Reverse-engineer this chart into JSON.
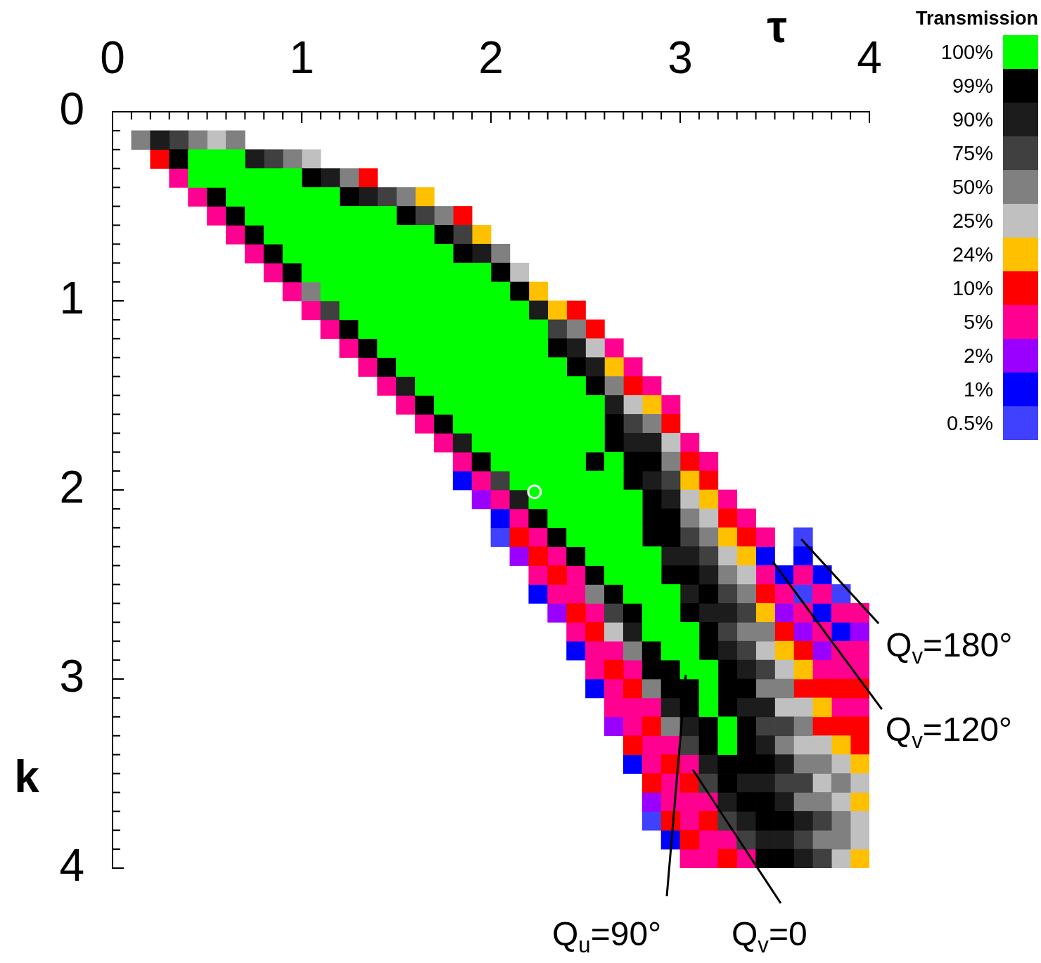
{
  "chart_data": {
    "type": "scatter",
    "xlabel": "τ",
    "ylabel": "k",
    "legend_title": "Transmission",
    "legend": "right",
    "marker": "square",
    "xlim": [
      0,
      4
    ],
    "ylim": [
      4,
      0
    ],
    "xticks": [
      0,
      {
        "value": 0.1,
        "label": null
      },
      {
        "value": 0.2,
        "label": null
      },
      {
        "value": 0.3,
        "label": null
      },
      {
        "value": 0.4,
        "label": null
      },
      {
        "value": 0.5,
        "label": null
      },
      {
        "value": 0.6,
        "label": null
      },
      {
        "value": 0.7,
        "label": null
      },
      {
        "value": 0.8,
        "label": null
      },
      {
        "value": 0.9,
        "label": null
      },
      1,
      {
        "value": 1.1,
        "label": null
      },
      {
        "value": 1.2,
        "label": null
      },
      {
        "value": 1.3,
        "label": null
      },
      {
        "value": 1.4,
        "label": null
      },
      {
        "value": 1.5,
        "label": null
      },
      {
        "value": 1.6,
        "label": null
      },
      {
        "value": 1.7,
        "label": null
      },
      {
        "value": 1.8,
        "label": null
      },
      {
        "value": 1.9,
        "label": null
      },
      2,
      {
        "value": 2.1,
        "label": null
      },
      {
        "value": 2.2,
        "label": null
      },
      {
        "value": 2.3,
        "label": null
      },
      {
        "value": 2.4,
        "label": null
      },
      {
        "value": 2.5,
        "label": null
      },
      {
        "value": 2.6,
        "label": null
      },
      {
        "value": 2.7,
        "label": null
      },
      {
        "value": 2.8,
        "label": null
      },
      {
        "value": 2.9,
        "label": null
      },
      3,
      {
        "value": 3.1,
        "label": null
      },
      {
        "value": 3.2,
        "label": null
      },
      {
        "value": 3.3,
        "label": null
      },
      {
        "value": 3.4,
        "label": null
      },
      {
        "value": 3.5,
        "label": null
      },
      {
        "value": 3.6,
        "label": null
      },
      {
        "value": 3.7,
        "label": null
      },
      {
        "value": 3.8,
        "label": null
      },
      {
        "value": 3.9,
        "label": null
      },
      4
    ],
    "yticks": [
      0,
      {
        "value": 0.1,
        "label": null
      },
      {
        "value": 0.2,
        "label": null
      },
      {
        "value": 0.3,
        "label": null
      },
      {
        "value": 0.4,
        "label": null
      },
      {
        "value": 0.5,
        "label": null
      },
      {
        "value": 0.6,
        "label": null
      },
      {
        "value": 0.7,
        "label": null
      },
      {
        "value": 0.8,
        "label": null
      },
      {
        "value": 0.9,
        "label": null
      },
      1,
      {
        "value": 1.1,
        "label": null
      },
      {
        "value": 1.2,
        "label": null
      },
      {
        "value": 1.3,
        "label": null
      },
      {
        "value": 1.4,
        "label": null
      },
      {
        "value": 1.5,
        "label": null
      },
      {
        "value": 1.6,
        "label": null
      },
      {
        "value": 1.7,
        "label": null
      },
      {
        "value": 1.8,
        "label": null
      },
      {
        "value": 1.9,
        "label": null
      },
      2,
      {
        "value": 2.1,
        "label": null
      },
      {
        "value": 2.2,
        "label": null
      },
      {
        "value": 2.3,
        "label": null
      },
      {
        "value": 2.4,
        "label": null
      },
      {
        "value": 2.5,
        "label": null
      },
      {
        "value": 2.6,
        "label": null
      },
      {
        "value": 2.7,
        "label": null
      },
      {
        "value": 2.8,
        "label": null
      },
      {
        "value": 2.9,
        "label": null
      },
      3,
      {
        "value": 3.1,
        "label": null
      },
      {
        "value": 3.2,
        "label": null
      },
      {
        "value": 3.3,
        "label": null
      },
      {
        "value": 3.4,
        "label": null
      },
      {
        "value": 3.5,
        "label": null
      },
      {
        "value": 3.6,
        "label": null
      },
      {
        "value": 3.7,
        "label": null
      },
      {
        "value": 3.8,
        "label": null
      },
      {
        "value": 3.9,
        "label": null
      },
      4
    ],
    "series": [
      {
        "name": "100%",
        "color": "#00ff00",
        "x": [
          0.45,
          0.45,
          0.55,
          0.55,
          0.65,
          0.65,
          0.65,
          0.75,
          0.75,
          0.75,
          0.85,
          0.85,
          0.85,
          0.85,
          0.95,
          0.95,
          0.95,
          0.95,
          0.95,
          1.05,
          1.05,
          1.05,
          1.05,
          1.05,
          1.15,
          1.15,
          1.15,
          1.15,
          1.15,
          1.15,
          1.25,
          1.25,
          1.25,
          1.25,
          1.25,
          1.25,
          1.35,
          1.35,
          1.35,
          1.35,
          1.35,
          1.35,
          1.35,
          1.45,
          1.45,
          1.45,
          1.45,
          1.45,
          1.45,
          1.45,
          1.45,
          1.55,
          1.55,
          1.55,
          1.55,
          1.55,
          1.55,
          1.55,
          1.55,
          1.65,
          1.65,
          1.65,
          1.65,
          1.65,
          1.65,
          1.65,
          1.65,
          1.65,
          1.75,
          1.75,
          1.75,
          1.75,
          1.75,
          1.75,
          1.75,
          1.75,
          1.75,
          1.85,
          1.85,
          1.85,
          1.85,
          1.85,
          1.85,
          1.85,
          1.85,
          1.85,
          1.95,
          1.95,
          1.95,
          1.95,
          1.95,
          1.95,
          1.95,
          1.95,
          1.95,
          1.95,
          2.05,
          2.05,
          2.05,
          2.05,
          2.05,
          2.05,
          2.05,
          2.05,
          2.05,
          2.05,
          2.15,
          2.15,
          2.15,
          2.15,
          2.15,
          2.15,
          2.15,
          2.15,
          2.15,
          2.15,
          2.25,
          2.25,
          2.25,
          2.25,
          2.25,
          2.25,
          2.25,
          2.25,
          2.25,
          2.25,
          2.35,
          2.35,
          2.35,
          2.35,
          2.35,
          2.35,
          2.35,
          2.35,
          2.35,
          2.45,
          2.45,
          2.45,
          2.45,
          2.45,
          2.45,
          2.45,
          2.45,
          2.45,
          2.55,
          2.55,
          2.55,
          2.55,
          2.55,
          2.55,
          2.55,
          2.55,
          2.65,
          2.65,
          2.65,
          2.65,
          2.65,
          2.65,
          2.65,
          2.75,
          2.75,
          2.75,
          2.75,
          2.75,
          2.75,
          2.85,
          2.85,
          2.85,
          2.85,
          2.85,
          2.95,
          2.95,
          2.95,
          2.95,
          3.05,
          3.05,
          3.05,
          3.15,
          3.15,
          3.15,
          3.25,
          3.25
        ],
        "values": [
          0.25,
          0.35,
          0.25,
          0.35,
          0.25,
          0.35,
          0.45,
          0.35,
          0.45,
          0.55,
          0.35,
          0.45,
          0.55,
          0.65,
          0.35,
          0.45,
          0.55,
          0.65,
          0.75,
          0.45,
          0.55,
          0.65,
          0.75,
          0.85,
          0.45,
          0.55,
          0.65,
          0.75,
          0.85,
          0.95,
          0.55,
          0.65,
          0.75,
          0.85,
          0.95,
          1.05,
          0.55,
          0.65,
          0.75,
          0.85,
          0.95,
          1.05,
          1.15,
          0.55,
          0.65,
          0.75,
          0.85,
          0.95,
          1.05,
          1.15,
          1.25,
          0.65,
          0.75,
          0.85,
          0.95,
          1.05,
          1.15,
          1.25,
          1.35,
          0.65,
          0.75,
          0.85,
          0.95,
          1.05,
          1.15,
          1.25,
          1.35,
          1.45,
          0.75,
          0.85,
          0.95,
          1.05,
          1.15,
          1.25,
          1.35,
          1.45,
          1.55,
          0.85,
          0.95,
          1.05,
          1.15,
          1.25,
          1.35,
          1.45,
          1.55,
          1.65,
          0.85,
          0.95,
          1.05,
          1.15,
          1.25,
          1.35,
          1.45,
          1.55,
          1.65,
          1.75,
          0.95,
          1.05,
          1.15,
          1.25,
          1.35,
          1.45,
          1.55,
          1.65,
          1.75,
          1.85,
          1.05,
          1.15,
          1.25,
          1.35,
          1.45,
          1.55,
          1.65,
          1.75,
          1.85,
          1.95,
          1.15,
          1.25,
          1.35,
          1.45,
          1.55,
          1.65,
          1.75,
          1.85,
          1.95,
          2.05,
          1.35,
          1.45,
          1.55,
          1.65,
          1.75,
          1.85,
          1.95,
          2.05,
          2.15,
          1.45,
          1.55,
          1.65,
          1.75,
          1.85,
          1.95,
          2.05,
          2.15,
          2.25,
          1.55,
          1.65,
          1.75,
          1.95,
          2.05,
          2.15,
          2.25,
          2.35,
          1.85,
          1.95,
          2.05,
          2.15,
          2.25,
          2.35,
          2.45,
          2.05,
          2.15,
          2.25,
          2.35,
          2.45,
          2.55,
          2.35,
          2.45,
          2.55,
          2.65,
          2.75,
          2.55,
          2.65,
          2.75,
          2.85,
          2.75,
          2.85,
          2.95,
          2.95,
          3.05,
          3.15,
          3.25,
          3.35
        ]
      },
      {
        "name": "99%",
        "color": "#000000",
        "x": [
          0.35,
          0.55,
          0.65,
          0.75,
          0.85,
          0.95,
          1.05,
          1.25,
          1.25,
          1.35,
          1.45,
          1.55,
          1.65,
          1.75,
          1.75,
          1.85,
          1.95,
          2.05,
          2.15,
          2.25,
          2.35,
          2.35,
          2.45,
          2.45,
          2.55,
          2.55,
          2.55,
          2.65,
          2.65,
          2.65,
          2.75,
          2.75,
          2.75,
          2.85,
          2.85,
          2.85,
          2.85,
          2.85,
          2.85,
          2.95,
          2.95,
          2.95,
          2.95,
          2.95,
          3.05,
          3.05,
          3.05,
          3.05,
          3.15,
          3.15,
          3.15,
          3.15,
          3.15,
          3.25,
          3.25,
          3.25,
          3.25,
          3.25,
          3.35,
          3.35,
          3.35,
          3.35,
          3.35,
          3.45,
          3.45,
          3.45,
          3.45,
          3.55,
          3.55
        ],
        "values": [
          0.25,
          0.45,
          0.55,
          0.65,
          0.75,
          0.85,
          0.35,
          0.45,
          1.15,
          1.25,
          1.35,
          0.55,
          1.55,
          0.65,
          1.65,
          0.75,
          1.85,
          0.85,
          0.95,
          2.15,
          1.25,
          2.25,
          1.35,
          2.35,
          1.45,
          1.85,
          2.45,
          1.65,
          1.75,
          2.55,
          1.85,
          1.95,
          2.65,
          1.85,
          2.05,
          2.15,
          2.25,
          2.85,
          2.95,
          2.15,
          2.25,
          2.45,
          2.95,
          3.05,
          2.45,
          2.65,
          3.05,
          3.15,
          2.55,
          2.75,
          2.85,
          3.25,
          3.35,
          2.95,
          3.05,
          3.15,
          3.45,
          3.55,
          3.05,
          3.25,
          3.35,
          3.45,
          3.65,
          3.45,
          3.65,
          3.75,
          3.95,
          3.75,
          3.95
        ]
      },
      {
        "name": "90%",
        "color": "#1c1c1c",
        "x": [
          0.25,
          0.75,
          1.15,
          1.35,
          1.55,
          1.85,
          1.95,
          2.15,
          2.25,
          2.45,
          2.55,
          2.65,
          2.75,
          2.75,
          2.85,
          2.85,
          2.95,
          2.95,
          2.95,
          3.05,
          3.05,
          3.05,
          3.15,
          3.15,
          3.15,
          3.25,
          3.25,
          3.25,
          3.35,
          3.35,
          3.35,
          3.35,
          3.45,
          3.45,
          3.45,
          3.45,
          3.55,
          3.55,
          3.55,
          3.65,
          3.65
        ],
        "values": [
          0.15,
          0.25,
          0.35,
          0.45,
          1.45,
          1.75,
          0.75,
          2.05,
          1.05,
          1.25,
          1.35,
          1.55,
          1.75,
          2.75,
          1.75,
          1.95,
          2.05,
          2.35,
          3.15,
          2.35,
          2.55,
          3.25,
          2.45,
          2.65,
          3.45,
          2.65,
          2.85,
          3.65,
          2.95,
          3.15,
          3.55,
          3.75,
          3.15,
          3.35,
          3.55,
          3.85,
          3.45,
          3.65,
          3.85,
          3.75,
          3.95
        ]
      },
      {
        "name": "75%",
        "color": "#404040",
        "x": [
          0.35,
          0.85,
          1.15,
          1.45,
          1.65,
          1.85,
          2.05,
          2.35,
          2.65,
          2.75,
          2.95,
          3.05,
          3.05,
          3.15,
          3.15,
          3.25,
          3.25,
          3.25,
          3.35,
          3.35,
          3.35,
          3.45,
          3.45,
          3.55,
          3.55,
          3.65,
          3.65,
          3.75,
          3.75
        ],
        "values": [
          0.15,
          0.25,
          1.05,
          0.45,
          0.55,
          0.65,
          1.95,
          1.15,
          2.65,
          1.65,
          1.95,
          2.25,
          3.35,
          2.35,
          3.55,
          2.55,
          2.75,
          3.75,
          2.65,
          2.85,
          3.85,
          2.95,
          3.25,
          3.25,
          3.55,
          3.55,
          3.85,
          3.75,
          3.95
        ]
      },
      {
        "name": "50%",
        "color": "#808080",
        "x": [
          0.15,
          0.45,
          0.65,
          0.95,
          1.05,
          1.25,
          1.55,
          1.75,
          2.05,
          2.45,
          2.55,
          2.65,
          2.75,
          2.85,
          2.85,
          2.95,
          2.95,
          3.05,
          3.15,
          3.25,
          3.35,
          3.35,
          3.45,
          3.45,
          3.55,
          3.55,
          3.65,
          3.65,
          3.65,
          3.75,
          3.75,
          3.75,
          3.85,
          3.85,
          3.85
        ],
        "values": [
          0.15,
          0.15,
          0.15,
          0.25,
          0.95,
          0.35,
          0.45,
          0.55,
          0.75,
          1.15,
          2.55,
          1.45,
          2.85,
          1.65,
          3.05,
          1.85,
          3.25,
          2.15,
          2.25,
          2.45,
          2.55,
          2.75,
          2.75,
          3.05,
          3.05,
          3.35,
          3.25,
          3.45,
          3.65,
          3.45,
          3.65,
          3.85,
          3.55,
          3.75,
          3.85
        ]
      },
      {
        "name": "25%",
        "color": "#c0c0c0",
        "x": [
          0.55,
          1.05,
          2.15,
          2.55,
          2.65,
          2.75,
          2.95,
          3.05,
          3.15,
          3.25,
          3.35,
          3.45,
          3.55,
          3.55,
          3.65,
          3.65,
          3.75,
          3.75,
          3.85,
          3.85,
          3.85,
          3.95,
          3.95,
          3.95
        ],
        "values": [
          0.15,
          0.25,
          0.85,
          1.25,
          2.75,
          1.55,
          1.75,
          2.05,
          2.15,
          2.35,
          2.45,
          2.85,
          2.95,
          3.15,
          3.15,
          3.35,
          3.35,
          3.55,
          3.45,
          3.65,
          3.95,
          3.55,
          3.75,
          3.85
        ]
      },
      {
        "name": "24%",
        "color": "#ffc000",
        "x": [
          1.65,
          1.95,
          2.25,
          2.35,
          2.65,
          2.85,
          3.05,
          3.15,
          3.25,
          3.35,
          3.45,
          3.55,
          3.65,
          3.75,
          3.85,
          3.95,
          3.95,
          3.95
        ],
        "values": [
          0.45,
          0.65,
          0.95,
          1.05,
          1.35,
          1.55,
          1.95,
          2.05,
          2.25,
          2.35,
          2.65,
          2.85,
          2.95,
          3.15,
          3.35,
          3.45,
          3.65,
          3.95
        ]
      },
      {
        "name": "10%",
        "color": "#ff0000",
        "x": [
          0.25,
          1.35,
          1.85,
          2.15,
          2.25,
          2.35,
          2.45,
          2.45,
          2.55,
          2.55,
          2.65,
          2.75,
          2.75,
          2.75,
          2.85,
          2.85,
          2.95,
          2.95,
          2.95,
          3.05,
          3.05,
          3.05,
          3.15,
          3.15,
          3.25,
          3.25,
          3.35,
          3.45,
          3.55,
          3.65,
          3.65,
          3.75,
          3.75,
          3.85,
          3.85,
          3.95,
          3.95,
          3.95
        ],
        "values": [
          0.25,
          0.35,
          0.55,
          2.25,
          2.35,
          2.45,
          1.05,
          2.65,
          1.15,
          2.75,
          2.95,
          1.45,
          3.05,
          3.35,
          3.25,
          3.55,
          1.65,
          3.45,
          3.75,
          1.85,
          3.55,
          3.85,
          1.95,
          3.75,
          2.15,
          3.95,
          2.25,
          2.55,
          2.75,
          2.85,
          3.05,
          3.05,
          3.25,
          3.05,
          3.25,
          3.05,
          3.25,
          3.35
        ]
      },
      {
        "name": "5%",
        "color": "#ff0090",
        "x": [
          0.35,
          0.45,
          0.55,
          0.65,
          0.75,
          0.85,
          0.95,
          1.05,
          1.15,
          1.25,
          1.35,
          1.45,
          1.55,
          1.65,
          1.75,
          1.85,
          1.95,
          2.05,
          2.15,
          2.25,
          2.25,
          2.35,
          2.35,
          2.45,
          2.45,
          2.45,
          2.55,
          2.55,
          2.55,
          2.65,
          2.65,
          2.65,
          2.65,
          2.75,
          2.75,
          2.75,
          2.75,
          2.85,
          2.85,
          2.85,
          2.85,
          2.95,
          2.95,
          2.95,
          2.95,
          3.05,
          3.05,
          3.05,
          3.05,
          3.05,
          3.15,
          3.15,
          3.15,
          3.15,
          3.25,
          3.25,
          3.35,
          3.35,
          3.45,
          3.55,
          3.65,
          3.75,
          3.75,
          3.85,
          3.85,
          3.85,
          3.95,
          3.95,
          3.95,
          3.65,
          3.75,
          3.85,
          3.95,
          3.45
        ],
        "values": [
          0.35,
          0.45,
          0.55,
          0.65,
          0.75,
          0.85,
          0.95,
          1.05,
          1.15,
          1.25,
          1.35,
          1.45,
          1.55,
          1.65,
          1.75,
          1.85,
          1.95,
          2.05,
          2.15,
          2.25,
          2.45,
          2.35,
          2.55,
          2.45,
          2.55,
          2.75,
          2.65,
          2.85,
          2.95,
          1.25,
          2.85,
          3.05,
          3.15,
          1.35,
          2.95,
          3.15,
          3.25,
          1.45,
          3.15,
          3.35,
          3.45,
          1.55,
          3.35,
          3.55,
          3.65,
          1.75,
          3.45,
          3.65,
          3.75,
          3.95,
          1.85,
          3.65,
          3.85,
          3.95,
          2.05,
          3.85,
          2.15,
          3.95,
          2.45,
          2.55,
          2.65,
          2.75,
          2.95,
          2.85,
          2.95,
          3.15,
          2.85,
          2.95,
          3.15,
          2.45,
          2.55,
          2.65,
          2.65,
          2.25
        ]
      },
      {
        "name": "2%",
        "color": "#9900ff",
        "x": [
          1.95,
          2.15,
          2.35,
          2.65,
          2.85,
          3.55,
          3.65,
          3.75,
          3.95
        ],
        "values": [
          2.05,
          2.35,
          2.65,
          3.25,
          3.65,
          2.65,
          2.75,
          2.85,
          2.75
        ]
      },
      {
        "name": "1%",
        "color": "#0000ff",
        "x": [
          1.85,
          2.05,
          2.25,
          2.45,
          2.55,
          2.75,
          2.95,
          3.45,
          3.55,
          3.75,
          3.85,
          3.65,
          3.75
        ],
        "values": [
          1.95,
          2.15,
          2.55,
          2.85,
          3.05,
          3.45,
          3.85,
          2.35,
          2.45,
          2.65,
          2.75,
          2.35,
          2.45
        ]
      },
      {
        "name": "0.5%",
        "color": "#4040ff",
        "x": [
          2.05,
          2.85,
          3.65,
          3.65,
          3.85
        ],
        "values": [
          2.25,
          3.75,
          2.55,
          2.25,
          2.55
        ]
      },
      {
        "color": "#ffffff",
        "marker": "circle",
        "x": [
          2.23
        ],
        "values": [
          2.01
        ]
      }
    ],
    "annotations": [
      {
        "text": "Q$_{v}$=180°",
        "x": 3.64,
        "y": 2.26
      },
      {
        "text": "Q$_{v}$=120°",
        "x": 3.49,
        "y": 2.38
      },
      "Q$_{u}$=90°",
      "Q$_{v}$=0"
    ]
  }
}
